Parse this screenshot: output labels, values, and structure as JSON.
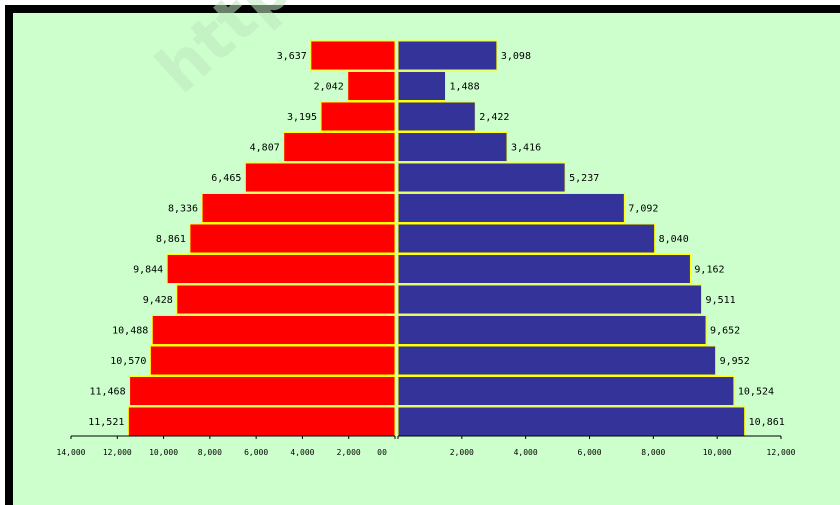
{
  "watermark": "http://p",
  "chart_data": {
    "type": "bar",
    "title": "",
    "orientation": "horizontal-back-to-back",
    "rows": 13,
    "series": [
      {
        "side": "left",
        "color": "#ff0000",
        "values": [
          3637,
          2042,
          3195,
          4807,
          6465,
          8336,
          8861,
          9844,
          9428,
          10488,
          10570,
          11468,
          11521
        ],
        "labels": [
          "3,637",
          "2,042",
          "3,195",
          "4,807",
          "6,465",
          "8,336",
          "8,861",
          "9,844",
          "9,428",
          "10,488",
          "10,570",
          "11,468",
          "11,521"
        ]
      },
      {
        "side": "right",
        "color": "#333399",
        "values": [
          3098,
          1488,
          2422,
          3416,
          5237,
          7092,
          8040,
          9162,
          9511,
          9652,
          9952,
          10524,
          10861
        ],
        "labels": [
          "3,098",
          "1,488",
          "2,422",
          "3,416",
          "5,237",
          "7,092",
          "8,040",
          "9,162",
          "9,511",
          "9,652",
          "9,952",
          "10,524",
          "10,861"
        ]
      }
    ],
    "left_axis": {
      "max": 14000,
      "ticks": [
        14000,
        12000,
        10000,
        8000,
        6000,
        4000,
        2000,
        0
      ],
      "tick_labels": [
        "14,000",
        "12,000",
        "10,000",
        "8,000",
        "6,000",
        "4,000",
        "2,000",
        "0"
      ]
    },
    "right_axis": {
      "max": 12000,
      "ticks": [
        0,
        2000,
        4000,
        6000,
        8000,
        10000,
        12000
      ],
      "tick_labels": [
        "0",
        "2,000",
        "4,000",
        "6,000",
        "8,000",
        "10,000",
        "12,000"
      ]
    },
    "bar_edge_color": "#ffff00",
    "grid": false,
    "legend": "none"
  }
}
